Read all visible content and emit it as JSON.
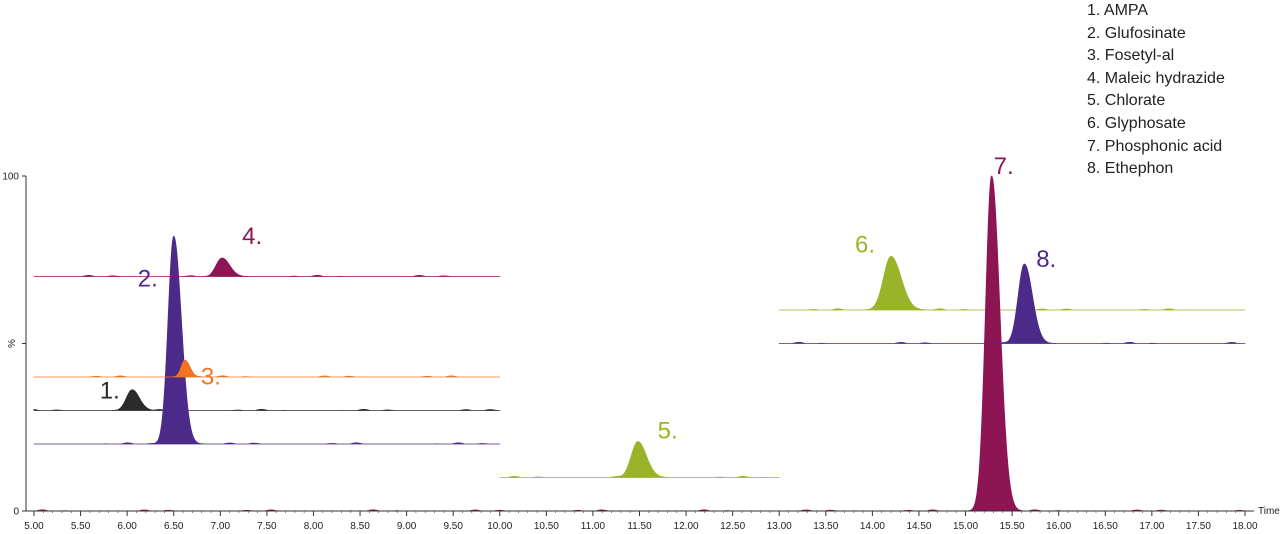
{
  "chart_data": {
    "type": "line",
    "title": "",
    "xlabel": "Time",
    "ylabel": "%",
    "xlim": [
      5.0,
      18.0
    ],
    "ylim": [
      0,
      100
    ],
    "x_ticks": [
      "5.00",
      "5.50",
      "6.00",
      "6.50",
      "7.00",
      "7.50",
      "8.00",
      "8.50",
      "9.00",
      "9.50",
      "10.00",
      "10.50",
      "11.00",
      "11.50",
      "12.00",
      "12.50",
      "13.00",
      "13.50",
      "14.00",
      "14.50",
      "15.00",
      "15.50",
      "16.00",
      "16.50",
      "17.00",
      "17.50",
      "18.00"
    ],
    "y_ticks": [
      "0",
      "%",
      "100"
    ],
    "grid": false,
    "legend": {
      "placement": "top-right",
      "entries": [
        "1. AMPA",
        "2. Glufosinate",
        "3. Fosetyl-al",
        "4. Maleic hydrazide",
        "5. Chlorate",
        "6. Glyphosate",
        "7. Phosphonic acid",
        "8. Ethephon"
      ]
    },
    "series": [
      {
        "name": "1. AMPA",
        "label": "1.",
        "color": "#2b2b2b",
        "x_range": [
          5.0,
          10.0
        ],
        "baseline": 30,
        "peak_x": 6.05,
        "peak_height": 6,
        "peak_width": 0.06
      },
      {
        "name": "2. Glufosinate",
        "label": "2.",
        "color": "#4b2a8a",
        "x_range": [
          5.0,
          10.0
        ],
        "baseline": 20,
        "peak_x": 6.5,
        "peak_height": 62,
        "peak_width": 0.06
      },
      {
        "name": "3. Fosetyl-al",
        "label": "3.",
        "color": "#f07323",
        "x_range": [
          5.0,
          10.0
        ],
        "baseline": 40,
        "peak_x": 6.62,
        "peak_height": 5,
        "peak_width": 0.04
      },
      {
        "name": "4. Maleic hydrazide",
        "label": "4.",
        "color": "#8e1553",
        "x_range": [
          5.0,
          10.0
        ],
        "baseline": 70,
        "peak_x": 7.02,
        "peak_height": 5.5,
        "peak_width": 0.06
      },
      {
        "name": "5. Chlorate",
        "label": "5.",
        "color": "#9ab42a",
        "x_range": [
          10.0,
          13.0
        ],
        "baseline": 10,
        "peak_x": 11.48,
        "peak_height": 10.5,
        "peak_width": 0.07
      },
      {
        "name": "6. Glyphosate",
        "label": "6.",
        "color": "#9ab42a",
        "x_range": [
          13.0,
          18.0
        ],
        "baseline": 60,
        "peak_x": 14.2,
        "peak_height": 16,
        "peak_width": 0.08
      },
      {
        "name": "7. Phosphonic acid",
        "label": "7.",
        "color": "#8e1553",
        "x_range": [
          5.0,
          18.0
        ],
        "baseline": 0,
        "peak_x": 15.28,
        "peak_height": 100,
        "peak_width": 0.065
      },
      {
        "name": "8. Ethephon",
        "label": "8.",
        "color": "#4b2a8a",
        "x_range": [
          13.0,
          18.0
        ],
        "baseline": 50,
        "peak_x": 15.63,
        "peak_height": 23.5,
        "peak_width": 0.065
      }
    ]
  }
}
